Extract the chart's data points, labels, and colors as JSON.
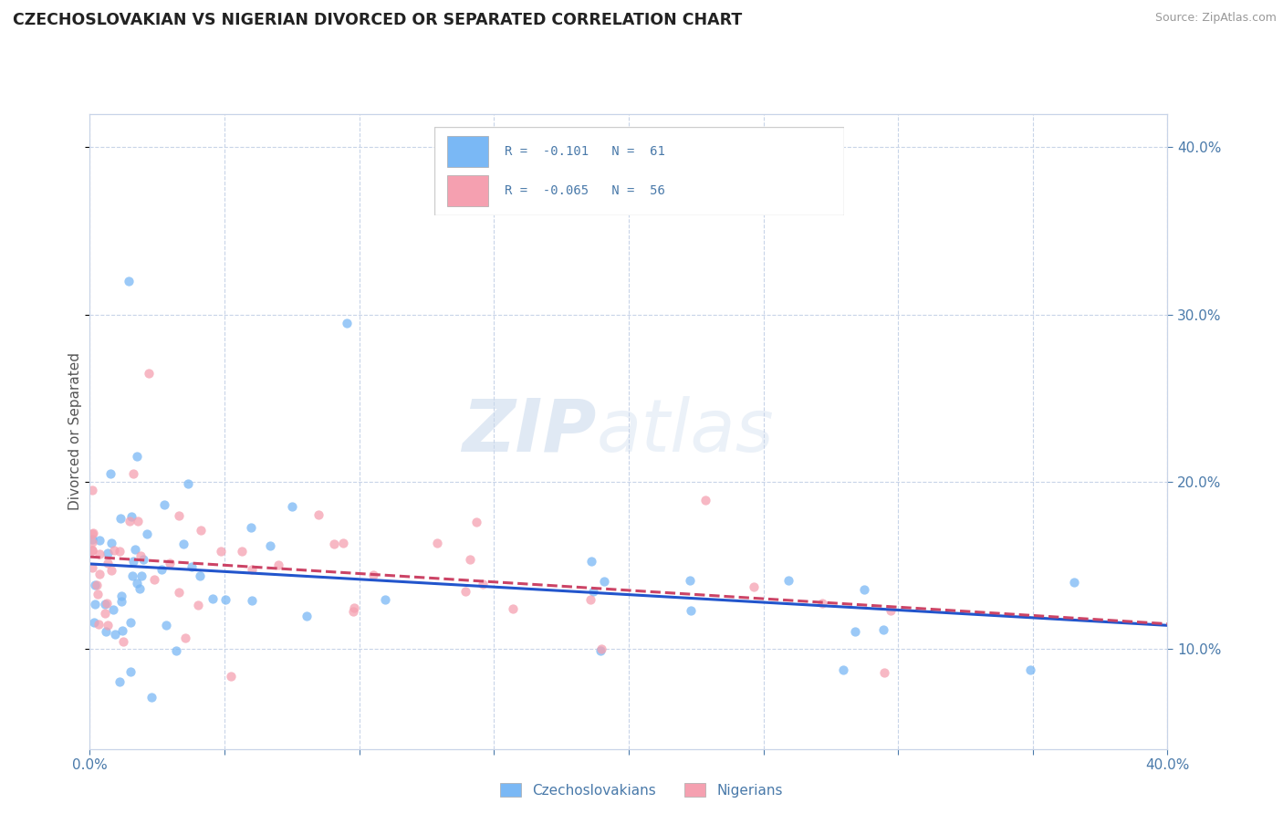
{
  "title": "CZECHOSLOVAKIAN VS NIGERIAN DIVORCED OR SEPARATED CORRELATION CHART",
  "source": "Source: ZipAtlas.com",
  "ylabel": "Divorced or Separated",
  "xmin": 0.0,
  "xmax": 0.4,
  "ymin": 0.04,
  "ymax": 0.42,
  "yticks_right": [
    0.1,
    0.2,
    0.3,
    0.4
  ],
  "watermark_zip": "ZIP",
  "watermark_atlas": "atlas",
  "title_color": "#222222",
  "czech_color": "#7ab8f5",
  "nigerian_color": "#f5a0b0",
  "czech_line_color": "#2255cc",
  "nigerian_line_color": "#cc4466",
  "grid_color": "#c8d4e8",
  "tick_color": "#4a7aaa",
  "background_color": "#ffffff",
  "legend_r1": "R =  -0.101   N =  61",
  "legend_r2": "R =  -0.065   N =  56",
  "legend_bottom1": "Czechoslovakians",
  "legend_bottom2": "Nigerians"
}
